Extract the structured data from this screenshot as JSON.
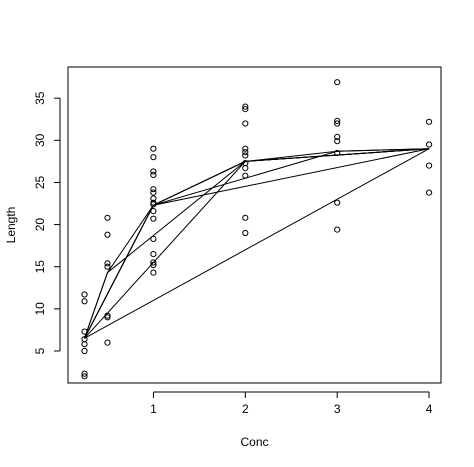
{
  "chart_data": {
    "type": "scatter",
    "title": "",
    "xlabel": "Conc",
    "ylabel": "Length",
    "xlim": [
      0.07,
      4.13
    ],
    "ylim": [
      1.2,
      38.7
    ],
    "x_ticks": [
      1,
      2,
      3,
      4
    ],
    "y_ticks": [
      5,
      10,
      15,
      20,
      25,
      30,
      35
    ],
    "grid": false,
    "points": [
      {
        "x": 0.25,
        "y": 11.7
      },
      {
        "x": 0.25,
        "y": 10.9
      },
      {
        "x": 0.25,
        "y": 7.3
      },
      {
        "x": 0.25,
        "y": 6.4
      },
      {
        "x": 0.25,
        "y": 5.8
      },
      {
        "x": 0.25,
        "y": 5.0
      },
      {
        "x": 0.25,
        "y": 2.3
      },
      {
        "x": 0.25,
        "y": 2.0
      },
      {
        "x": 0.5,
        "y": 20.8
      },
      {
        "x": 0.5,
        "y": 18.8
      },
      {
        "x": 0.5,
        "y": 15.4
      },
      {
        "x": 0.5,
        "y": 15.0
      },
      {
        "x": 0.5,
        "y": 9.2
      },
      {
        "x": 0.5,
        "y": 9.0
      },
      {
        "x": 0.5,
        "y": 6.0
      },
      {
        "x": 1,
        "y": 29.0
      },
      {
        "x": 1,
        "y": 28.0
      },
      {
        "x": 1,
        "y": 26.3
      },
      {
        "x": 1,
        "y": 25.9
      },
      {
        "x": 1,
        "y": 24.2
      },
      {
        "x": 1,
        "y": 23.8
      },
      {
        "x": 1,
        "y": 23.1
      },
      {
        "x": 1,
        "y": 22.6
      },
      {
        "x": 1,
        "y": 22.4
      },
      {
        "x": 1,
        "y": 21.6
      },
      {
        "x": 1,
        "y": 20.7
      },
      {
        "x": 1,
        "y": 18.3
      },
      {
        "x": 1,
        "y": 16.5
      },
      {
        "x": 1,
        "y": 15.5
      },
      {
        "x": 1,
        "y": 15.2
      },
      {
        "x": 1,
        "y": 14.3
      },
      {
        "x": 2,
        "y": 34.0
      },
      {
        "x": 2,
        "y": 33.7
      },
      {
        "x": 2,
        "y": 32.0
      },
      {
        "x": 2,
        "y": 29.0
      },
      {
        "x": 2,
        "y": 28.6
      },
      {
        "x": 2,
        "y": 28.2
      },
      {
        "x": 2,
        "y": 27.3
      },
      {
        "x": 2,
        "y": 26.7
      },
      {
        "x": 2,
        "y": 25.8
      },
      {
        "x": 2,
        "y": 20.8
      },
      {
        "x": 2,
        "y": 19.0
      },
      {
        "x": 3,
        "y": 36.9
      },
      {
        "x": 3,
        "y": 32.3
      },
      {
        "x": 3,
        "y": 32.0
      },
      {
        "x": 3,
        "y": 30.4
      },
      {
        "x": 3,
        "y": 29.9
      },
      {
        "x": 3,
        "y": 28.5
      },
      {
        "x": 3,
        "y": 22.6
      },
      {
        "x": 3,
        "y": 19.4
      },
      {
        "x": 4,
        "y": 32.2
      },
      {
        "x": 4,
        "y": 29.5
      },
      {
        "x": 4,
        "y": 27.0
      },
      {
        "x": 4,
        "y": 23.8
      }
    ],
    "lines": [
      {
        "x": [
          0.25,
          0.5,
          1,
          2,
          4
        ],
        "y": [
          6.5,
          14.3,
          22.3,
          27.5,
          29.0
        ]
      },
      {
        "x": [
          0.25,
          1,
          2,
          3,
          4
        ],
        "y": [
          6.5,
          22.3,
          27.5,
          28.7,
          29.0
        ]
      },
      {
        "x": [
          0.25,
          1,
          3,
          4
        ],
        "y": [
          6.5,
          22.3,
          28.7,
          29.0
        ]
      },
      {
        "x": [
          0.25,
          1,
          4
        ],
        "y": [
          6.5,
          22.3,
          29.0
        ]
      },
      {
        "x": [
          0.25,
          0.5,
          2,
          4
        ],
        "y": [
          6.5,
          14.3,
          27.5,
          29.0
        ]
      },
      {
        "x": [
          0.25,
          2,
          4
        ],
        "y": [
          6.5,
          27.5,
          29.0
        ]
      },
      {
        "x": [
          0.25,
          1,
          2,
          4
        ],
        "y": [
          6.5,
          22.3,
          27.5,
          29.0
        ]
      },
      {
        "x": [
          0.25,
          4
        ],
        "y": [
          6.5,
          29.0
        ]
      }
    ]
  }
}
